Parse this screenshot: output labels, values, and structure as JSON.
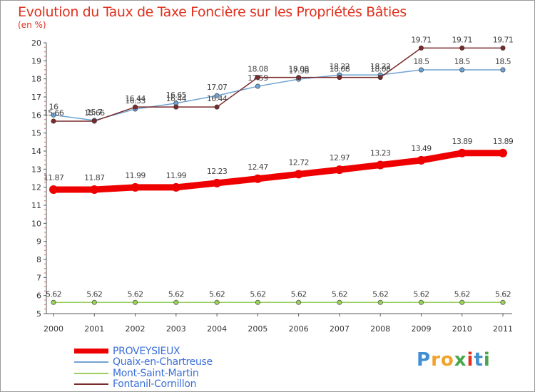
{
  "title": "Evolution du Taux de Taxe Foncière sur les Propriétés Bâties",
  "unit_label": "(en %)",
  "logo": {
    "text": "Proxiti",
    "letters": [
      "P",
      "r",
      "o",
      "x",
      "i",
      "t",
      "i"
    ],
    "colors": [
      "#3f8fd2",
      "#f0a32a",
      "#f0a32a",
      "#4aa64a",
      "#e0301e",
      "#3f8fd2",
      "#4aa64a"
    ]
  },
  "chart_data": {
    "type": "line",
    "x": [
      "2000",
      "2001",
      "2002",
      "2003",
      "2004",
      "2005",
      "2006",
      "2007",
      "2008",
      "2009",
      "2010",
      "2011"
    ],
    "ylim": [
      5,
      20
    ],
    "yticks": [
      "5",
      "6",
      "7",
      "8",
      "9",
      "10",
      "11",
      "12",
      "13",
      "14",
      "15",
      "16",
      "17",
      "18",
      "19",
      "20"
    ],
    "grid": false,
    "legend_position": "bottom-left",
    "series": [
      {
        "name": "PROVEYSIEUX",
        "color": "#ee0000",
        "emphasis": true,
        "values": [
          11.87,
          11.87,
          11.99,
          11.99,
          12.23,
          12.47,
          12.72,
          12.97,
          13.23,
          13.49,
          13.89,
          13.89
        ],
        "labels": [
          "11.87",
          "11.87",
          "11.99",
          "11.99",
          "12.23",
          "12.47",
          "12.72",
          "12.97",
          "13.23",
          "13.49",
          "13.89",
          "13.89"
        ]
      },
      {
        "name": "Quaix-en-Chartreuse",
        "color": "#6fa3d3",
        "emphasis": false,
        "values": [
          16,
          15.7,
          16.33,
          16.65,
          17.07,
          17.59,
          17.98,
          18.22,
          18.22,
          18.5,
          18.5,
          18.5
        ],
        "labels": [
          "16",
          "15.7",
          "16.33",
          "16.65",
          "17.07",
          "17.59",
          "17.98",
          "18.22",
          "18.22",
          "18.5",
          "18.5",
          "18.5"
        ]
      },
      {
        "name": "Mont-Saint-Martin",
        "color": "#99d05c",
        "emphasis": false,
        "values": [
          5.62,
          5.62,
          5.62,
          5.62,
          5.62,
          5.62,
          5.62,
          5.62,
          5.62,
          5.62,
          5.62,
          5.62
        ],
        "labels": [
          "5.62",
          "5.62",
          "5.62",
          "5.62",
          "5.62",
          "5.62",
          "5.62",
          "5.62",
          "5.62",
          "5.62",
          "5.62",
          "5.62"
        ]
      },
      {
        "name": "Fontanil-Cornillon",
        "color": "#7a2a2a",
        "emphasis": false,
        "values": [
          15.66,
          15.66,
          16.44,
          16.44,
          16.44,
          18.08,
          18.08,
          18.08,
          18.08,
          19.71,
          19.71,
          19.71
        ],
        "labels": [
          "15.66",
          "15.66",
          "16.44",
          "16.44",
          "16.44",
          "18.08",
          "18.08",
          "18.08",
          "18.08",
          "19.71",
          "19.71",
          "19.71"
        ]
      }
    ]
  }
}
